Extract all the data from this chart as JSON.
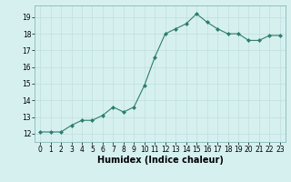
{
  "x": [
    0,
    1,
    2,
    3,
    4,
    5,
    6,
    7,
    8,
    9,
    10,
    11,
    12,
    13,
    14,
    15,
    16,
    17,
    18,
    19,
    20,
    21,
    22,
    23
  ],
  "y": [
    12.1,
    12.1,
    12.1,
    12.5,
    12.8,
    12.8,
    13.1,
    13.6,
    13.3,
    13.6,
    14.9,
    16.6,
    18.0,
    18.3,
    18.6,
    19.2,
    18.7,
    18.3,
    18.0,
    18.0,
    17.6,
    17.6,
    17.9,
    17.9
  ],
  "xlabel": "Humidex (Indice chaleur)",
  "xlim": [
    -0.5,
    23.5
  ],
  "ylim": [
    11.5,
    19.7
  ],
  "yticks": [
    12,
    13,
    14,
    15,
    16,
    17,
    18,
    19
  ],
  "xticks": [
    0,
    1,
    2,
    3,
    4,
    5,
    6,
    7,
    8,
    9,
    10,
    11,
    12,
    13,
    14,
    15,
    16,
    17,
    18,
    19,
    20,
    21,
    22,
    23
  ],
  "line_color": "#2e7d6e",
  "marker_color": "#2e7d6e",
  "bg_color": "#d6f0f0",
  "grid_color": "#c0dede",
  "grid_color_minor": "#daeaea",
  "axis_fontsize": 6.5,
  "tick_fontsize": 5.5,
  "xlabel_fontsize": 7.0
}
